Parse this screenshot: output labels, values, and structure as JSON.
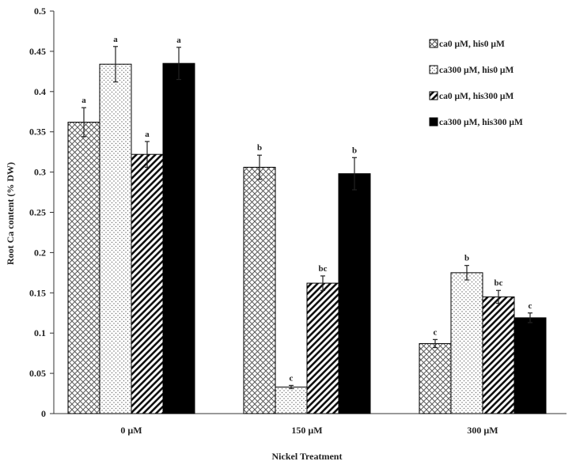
{
  "chart_data": {
    "type": "bar",
    "title": "",
    "xlabel": "Nickel Treatment",
    "ylabel": "Root Ca content (% DW)",
    "ylim": [
      0,
      0.5
    ],
    "yticks": [
      0,
      0.05,
      0.1,
      0.15,
      0.2,
      0.25,
      0.3,
      0.35,
      0.4,
      0.45,
      0.5
    ],
    "ytick_labels": [
      "0",
      "0.05",
      "0.1",
      "0.15",
      "0.2",
      "0.25",
      "0.3",
      "0.35",
      "0.4",
      "0.45",
      "0.5"
    ],
    "categories": [
      "0 µM",
      "150 µM",
      "300 µM"
    ],
    "grid": false,
    "legend_position": "top-right",
    "series": [
      {
        "name": "ca0 µM, his0 µM",
        "pattern": "crosshatch",
        "color": "#555555",
        "values": [
          0.362,
          0.306,
          0.087
        ],
        "errors": [
          0.018,
          0.015,
          0.005
        ],
        "labels": [
          "a",
          "b",
          "c"
        ]
      },
      {
        "name": "ca300 µM, his0 µM",
        "pattern": "dots",
        "color": "#777777",
        "values": [
          0.434,
          0.033,
          0.175
        ],
        "errors": [
          0.022,
          0.002,
          0.009
        ],
        "labels": [
          "a",
          "c",
          "b"
        ]
      },
      {
        "name": "ca0 µM, his300 µM",
        "pattern": "diagonal",
        "color": "#111111",
        "values": [
          0.322,
          0.162,
          0.145
        ],
        "errors": [
          0.016,
          0.009,
          0.008
        ],
        "labels": [
          "a",
          "bc",
          "bc"
        ]
      },
      {
        "name": "ca300 µM, his300 µM",
        "pattern": "solid",
        "color": "#000000",
        "values": [
          0.435,
          0.298,
          0.119
        ],
        "errors": [
          0.02,
          0.02,
          0.006
        ],
        "labels": [
          "a",
          "b",
          "c"
        ]
      }
    ]
  }
}
